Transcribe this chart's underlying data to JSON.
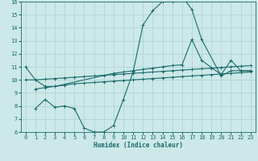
{
  "xlabel": "Humidex (Indice chaleur)",
  "bg_color": "#cce8e8",
  "grid_color": "#b0d4d4",
  "line_color": "#1a6b6b",
  "xlim": [
    -0.5,
    23.5
  ],
  "ylim": [
    6,
    16
  ],
  "xticks": [
    0,
    1,
    2,
    3,
    4,
    5,
    6,
    7,
    8,
    9,
    10,
    11,
    12,
    13,
    14,
    15,
    16,
    17,
    18,
    19,
    20,
    21,
    22,
    23
  ],
  "yticks": [
    6,
    7,
    8,
    9,
    10,
    11,
    12,
    13,
    14,
    15,
    16
  ],
  "line1_x": [
    0,
    1,
    2,
    3,
    9,
    10,
    11,
    12,
    13,
    14,
    15,
    16,
    17,
    18,
    20,
    21,
    22,
    23
  ],
  "line1_y": [
    11,
    10,
    9.5,
    9.5,
    10.5,
    10.6,
    10.7,
    10.8,
    10.9,
    11.0,
    11.1,
    11.15,
    13.1,
    11.5,
    10.4,
    11.5,
    10.7,
    10.7
  ],
  "line2_x": [
    0,
    1,
    2,
    3,
    4,
    5,
    6,
    7,
    8,
    9,
    10,
    11,
    12,
    13,
    14,
    15,
    16,
    17,
    18,
    19,
    20,
    21,
    22,
    23
  ],
  "line2_y": [
    10.0,
    10.0,
    10.05,
    10.1,
    10.15,
    10.2,
    10.25,
    10.3,
    10.35,
    10.4,
    10.45,
    10.5,
    10.55,
    10.6,
    10.65,
    10.7,
    10.75,
    10.8,
    10.85,
    10.9,
    10.95,
    11.0,
    11.05,
    11.1
  ],
  "line3_x": [
    1,
    2,
    3,
    4,
    5,
    6,
    7,
    8,
    9,
    10,
    11,
    12,
    13,
    14,
    15,
    16,
    17,
    18,
    19,
    20,
    21,
    22,
    23
  ],
  "line3_y": [
    9.3,
    9.4,
    9.5,
    9.6,
    9.7,
    9.75,
    9.8,
    9.85,
    9.9,
    9.95,
    10.0,
    10.05,
    10.1,
    10.15,
    10.2,
    10.25,
    10.3,
    10.35,
    10.4,
    10.45,
    10.5,
    10.55,
    10.6
  ],
  "line4_x": [
    1,
    2,
    3,
    4,
    5,
    6,
    7,
    8,
    9,
    10,
    11,
    12,
    13,
    14,
    15,
    16,
    17,
    18,
    20,
    21,
    22,
    23
  ],
  "line4_y": [
    7.8,
    8.5,
    7.9,
    8.0,
    7.8,
    6.3,
    6.0,
    6.0,
    6.5,
    8.5,
    10.6,
    14.2,
    15.3,
    16.0,
    16.0,
    16.4,
    15.4,
    13.1,
    10.3,
    10.7,
    10.7,
    10.7
  ]
}
